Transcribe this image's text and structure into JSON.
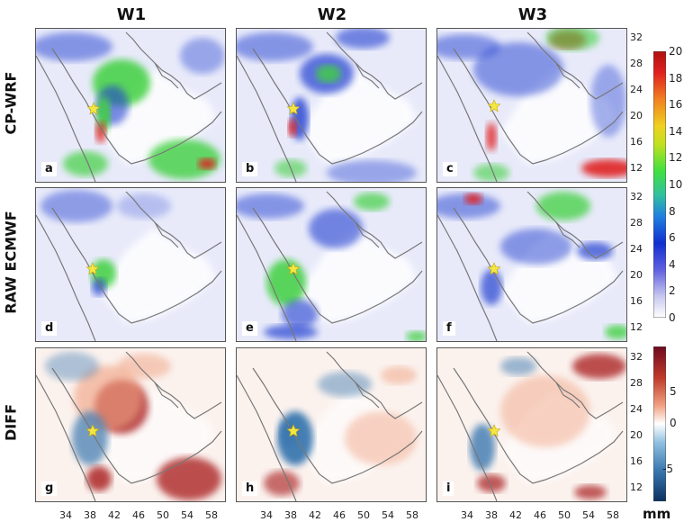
{
  "columns": [
    "W1",
    "W2",
    "W3"
  ],
  "rows": [
    "CP-WRF",
    "RAW ECMWF",
    "DIFF"
  ],
  "panel_labels": [
    [
      "a",
      "b",
      "c"
    ],
    [
      "d",
      "e",
      "f"
    ],
    [
      "g",
      "h",
      "i"
    ]
  ],
  "lat_ticks": [
    "32",
    "28",
    "24",
    "20",
    "16",
    "12"
  ],
  "lon_ticks": [
    "34",
    "38",
    "42",
    "46",
    "50",
    "54",
    "58"
  ],
  "precip_colorbar": {
    "ticks": [
      "20",
      "18",
      "16",
      "14",
      "12",
      "10",
      "8",
      "6",
      "4",
      "2",
      "0"
    ],
    "colors": [
      "#ffffff",
      "#c8c8f0",
      "#6060e0",
      "#1030d0",
      "#2080e0",
      "#30c0a0",
      "#40e040",
      "#c0e020",
      "#f0d020",
      "#f08020",
      "#e02020",
      "#b01010"
    ]
  },
  "diff_colorbar": {
    "ticks": [
      "5",
      "0",
      "-5"
    ],
    "colors": [
      "#6e0a1e",
      "#c0392b",
      "#f0a080",
      "#ffffff",
      "#90c0e0",
      "#3a78b0",
      "#0c3060"
    ]
  },
  "unit": "mm",
  "marker": "star-marker"
}
